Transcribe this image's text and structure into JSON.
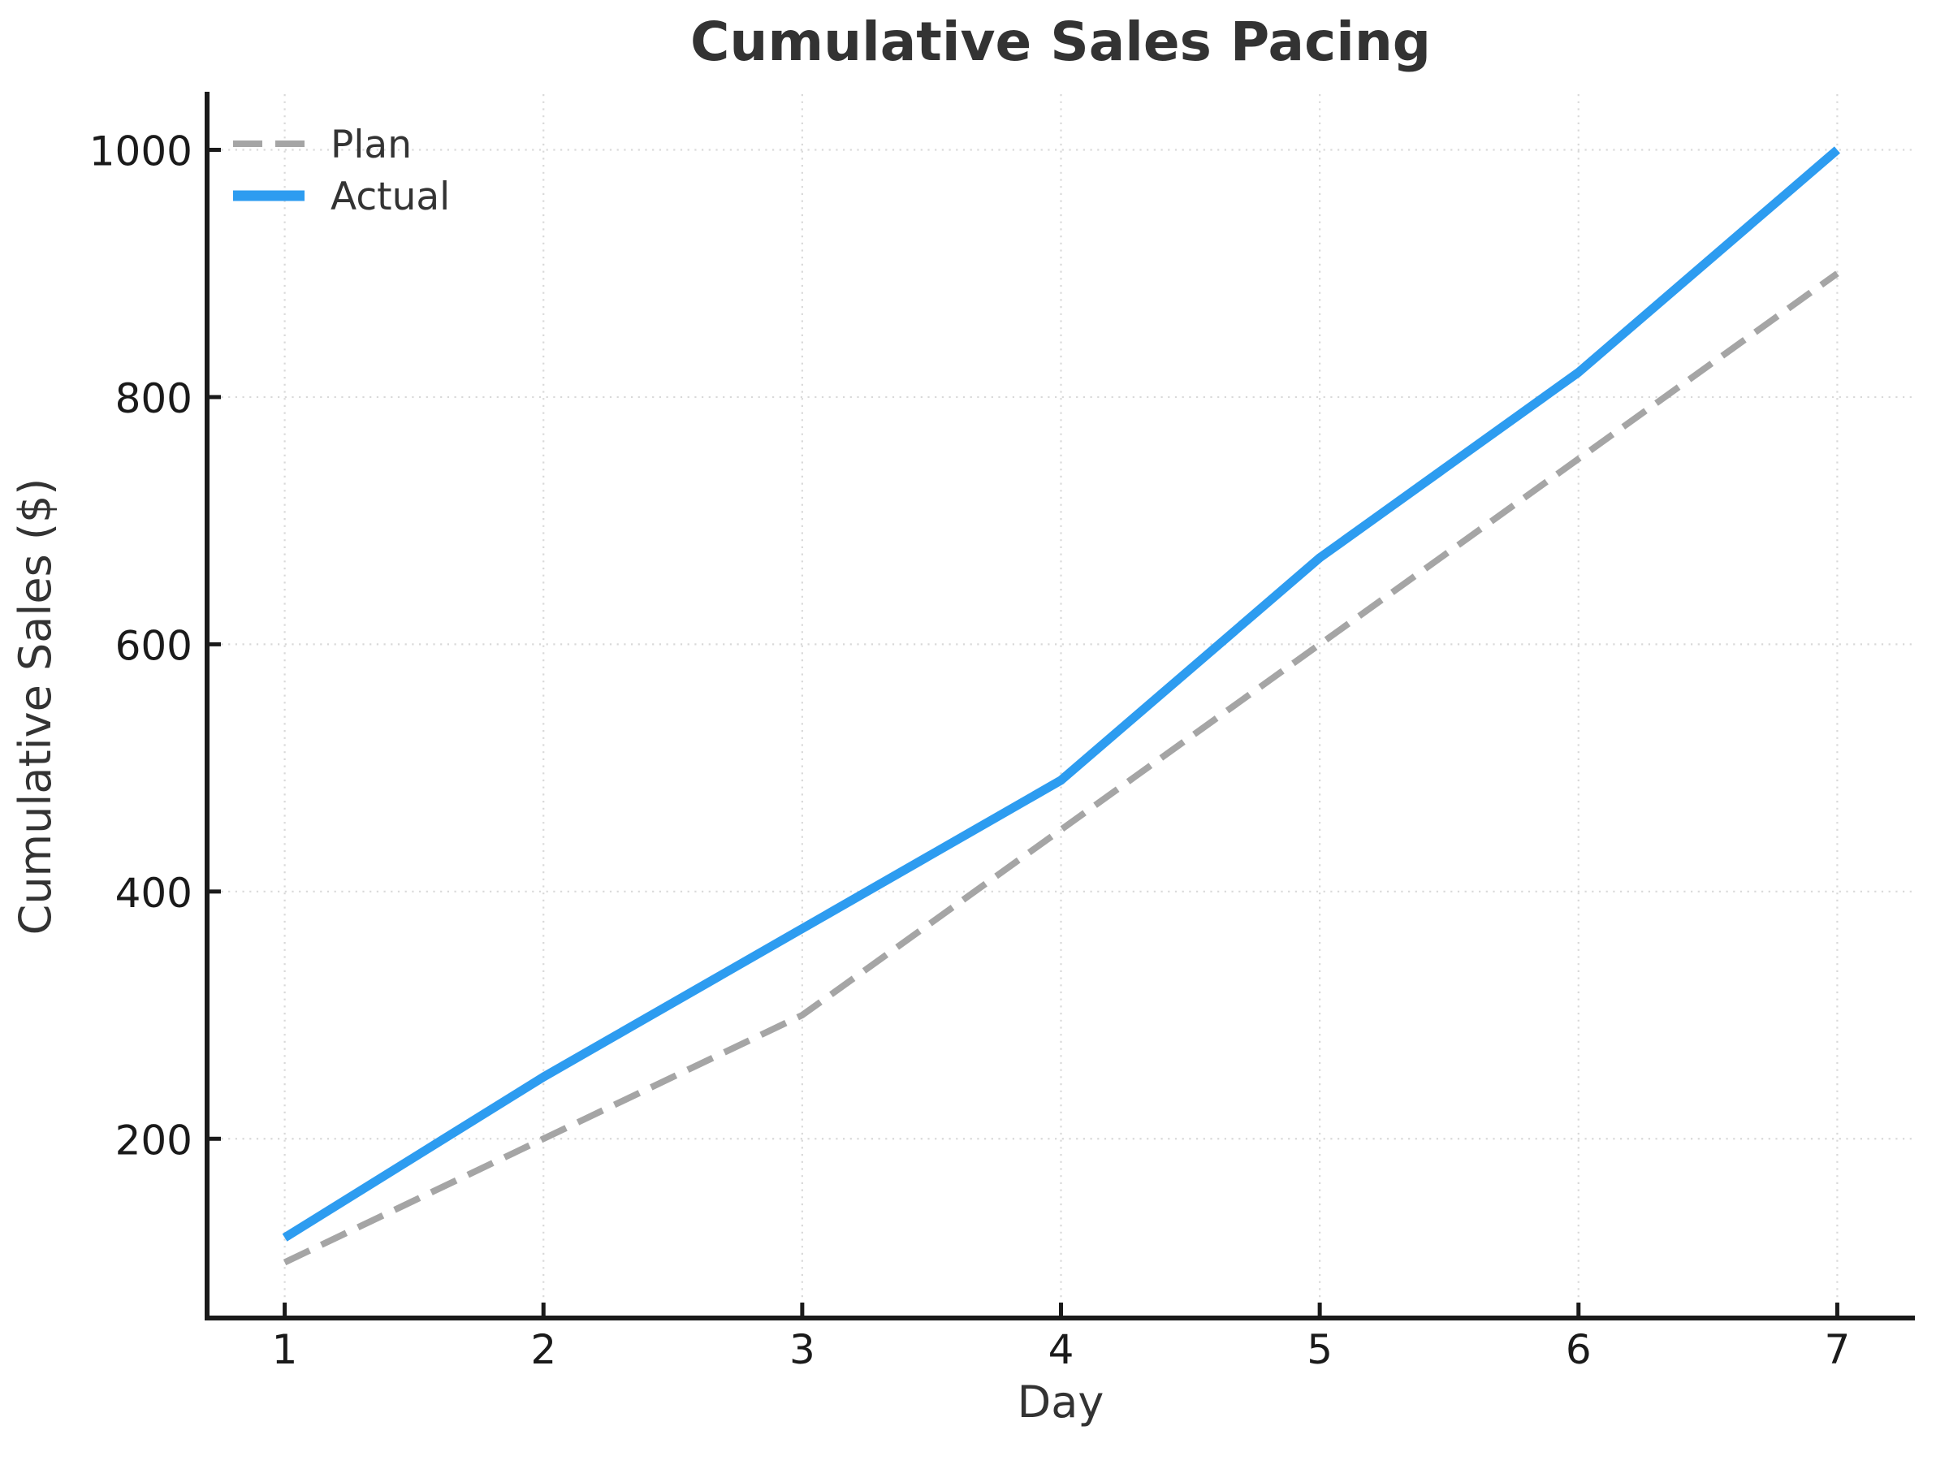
{
  "chart_data": {
    "type": "line",
    "title": "Cumulative Sales Pacing",
    "xlabel": "Day",
    "ylabel": "Cumulative Sales ($)",
    "x": [
      1,
      2,
      3,
      4,
      5,
      6,
      7
    ],
    "series": [
      {
        "name": "Plan",
        "values": [
          100,
          200,
          300,
          450,
          600,
          750,
          900
        ],
        "color": "#a5a5a5",
        "line_style": "dashed",
        "line_width": 8
      },
      {
        "name": "Actual",
        "values": [
          120,
          250,
          370,
          490,
          670,
          820,
          1000
        ],
        "color": "#2d9cf0",
        "line_style": "solid",
        "line_width": 11
      }
    ],
    "x_ticks": [
      1,
      2,
      3,
      4,
      5,
      6,
      7
    ],
    "y_ticks": [
      200,
      400,
      600,
      800,
      1000
    ],
    "xlim": [
      0.7,
      7.3
    ],
    "ylim": [
      55,
      1045
    ],
    "grid": true,
    "grid_style": "dotted",
    "legend_position": "upper-left",
    "legend_frame": false
  },
  "colors": {
    "background": "#ffffff",
    "grid": "#d9d9d9",
    "spine": "#1a1a1a",
    "tick_label": "#1a1a1a",
    "text": "#333333",
    "plan_line": "#a5a5a5",
    "actual_line": "#2d9cf0"
  }
}
